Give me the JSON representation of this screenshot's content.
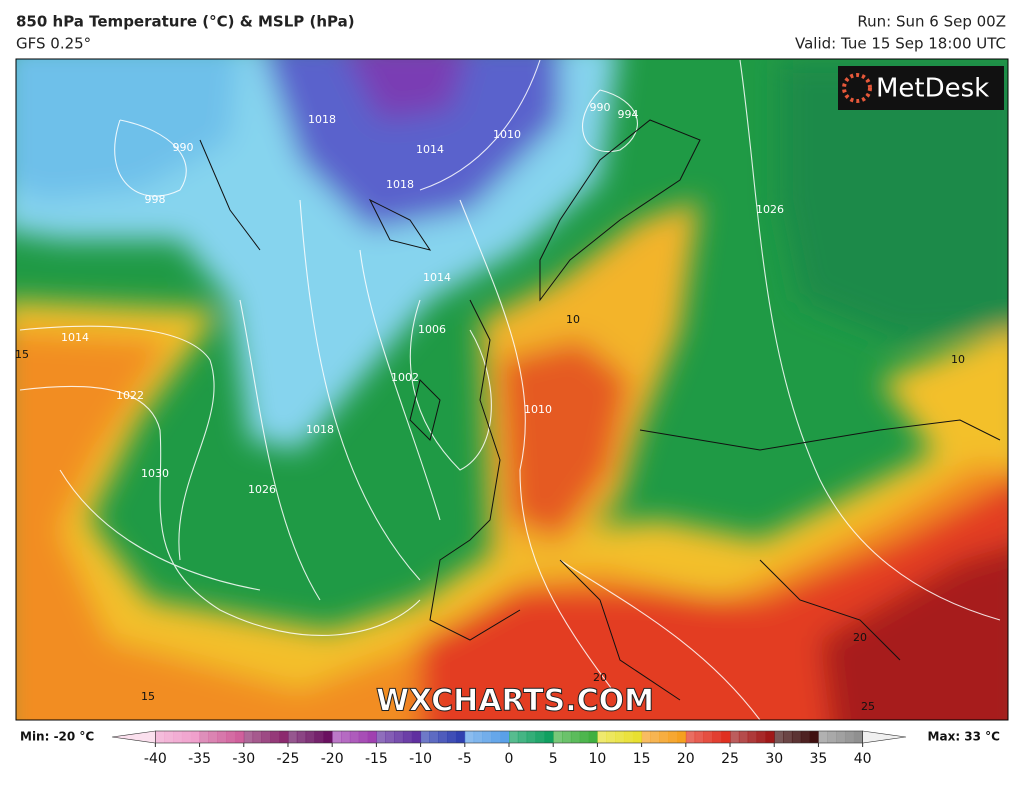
{
  "header": {
    "title": "850 hPa Temperature (°C) & MSLP (hPa)",
    "model": "GFS 0.25°",
    "run": "Run: Sun 6 Sep 00Z",
    "valid": "Valid: Tue 15 Sep 18:00 UTC"
  },
  "logo": "MetDesk",
  "watermark": "WXCHARTS.COM",
  "map": {
    "isobar_labels": [
      "1014",
      "1022",
      "1030",
      "1026",
      "1018",
      "1002",
      "1006",
      "1014",
      "1010",
      "998",
      "990",
      "1018",
      "1014",
      "1018",
      "1010",
      "990",
      "994",
      "1026"
    ],
    "temp_labels": [
      "15",
      "10",
      "10",
      "20",
      "20",
      "15",
      "25"
    ]
  },
  "colorbar": {
    "min_label": "Min: -20 °C",
    "max_label": "Max: 33 °C",
    "lim": [
      -44,
      44
    ],
    "ticks": [
      -40,
      -35,
      -30,
      -25,
      -20,
      -15,
      -10,
      -5,
      0,
      5,
      10,
      15,
      20,
      25,
      30,
      35,
      40
    ],
    "colors": [
      "#fbe0ee",
      "#f0a0cc",
      "#d0609c",
      "#8c2a6e",
      "#6a1060",
      "#a040b0",
      "#6030a0",
      "#3040b0",
      "#5aa0e8",
      "#10a060",
      "#40b040",
      "#e8e030",
      "#f5a020",
      "#e03020",
      "#a01818",
      "#401010",
      "#909090",
      "#f0f0f0"
    ]
  }
}
